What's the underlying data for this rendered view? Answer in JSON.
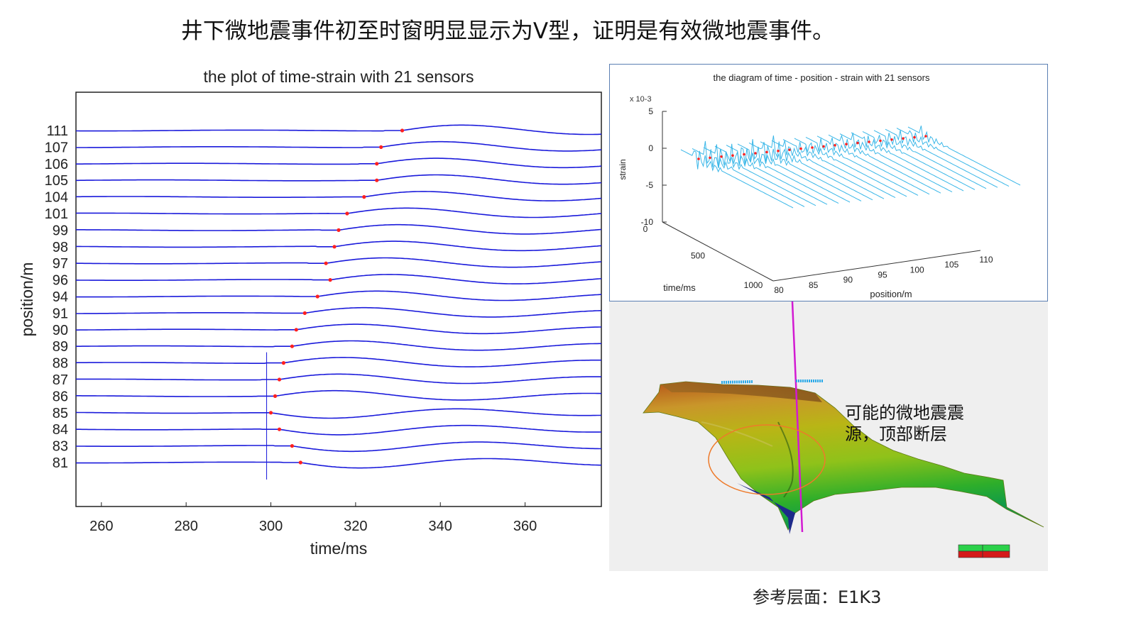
{
  "slide": {
    "title": "井下微地震事件初至时窗明显显示为V型，证明是有效微地震事件。",
    "annotation_line1": "可能的微地震震",
    "annotation_line2": "源，顶部断层",
    "horizon_label": "参考层面：E1K3"
  },
  "chart_data": [
    {
      "type": "line",
      "title": "the plot of time-strain with 21 sensors",
      "xlabel": "time/ms",
      "ylabel": "position/m",
      "xlim": [
        254,
        378
      ],
      "xticks": [
        260,
        280,
        300,
        320,
        340,
        360
      ],
      "series_color": "#1a1adb",
      "pick_color": "#ff2020",
      "categories": [
        "111",
        "107",
        "106",
        "105",
        "104",
        "101",
        "99",
        "98",
        "97",
        "96",
        "94",
        "91",
        "90",
        "89",
        "88",
        "87",
        "86",
        "85",
        "84",
        "83",
        "81"
      ],
      "first_arrival_ms": [
        331,
        326,
        325,
        325,
        322,
        318,
        316,
        315,
        313,
        314,
        311,
        308,
        306,
        305,
        303,
        302,
        301,
        300,
        302,
        305,
        307
      ],
      "vertical_marker_ms": 299
    },
    {
      "type": "line",
      "title": "the diagram of time - position - strain with 21 sensors",
      "xlabel": "position/m",
      "ylabel": "time/ms",
      "zlabel": "strain",
      "z_exponent": "x 10-3",
      "xticks": [
        80,
        85,
        90,
        95,
        100,
        105,
        110
      ],
      "yticks": [
        0,
        500,
        1000
      ],
      "zticks": [
        5,
        0,
        -5,
        -10
      ],
      "zlim": [
        -10,
        5
      ],
      "series_color": "#3bb7e8"
    }
  ],
  "colors": {
    "trace_blue": "#1a1adb",
    "pick_red": "#ff2020",
    "panel_border": "#5b7fb3",
    "wellbore": "#d21ad2",
    "ellipse": "#ee7a2a"
  }
}
